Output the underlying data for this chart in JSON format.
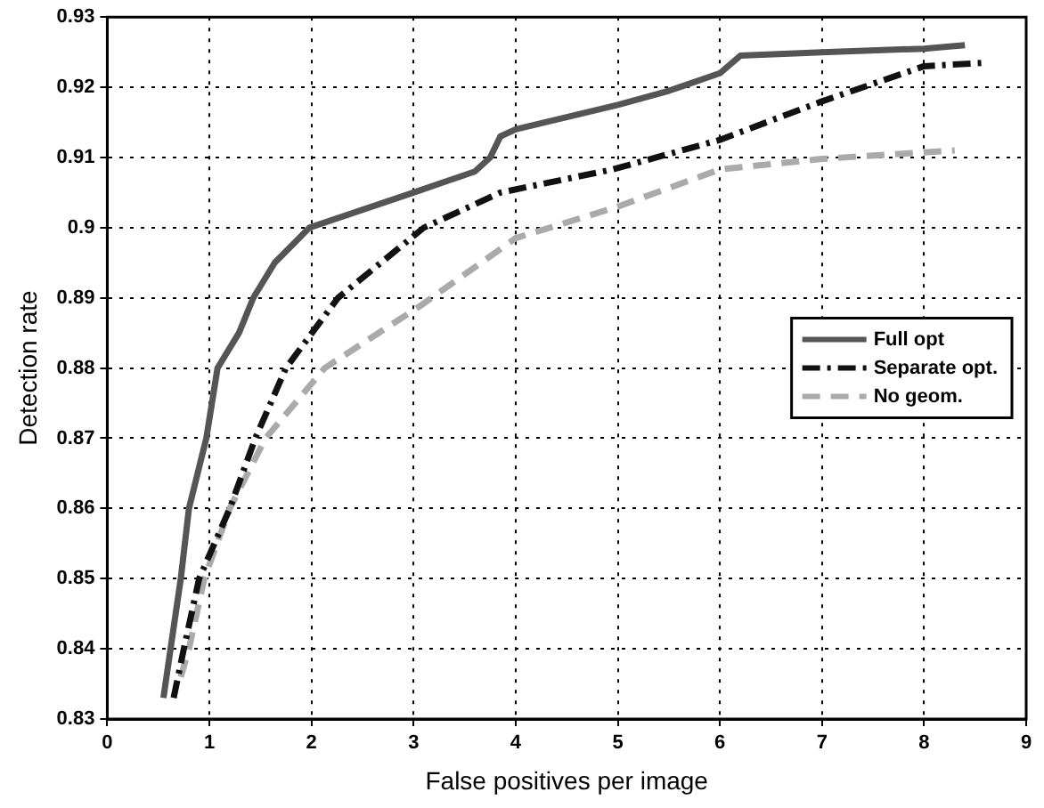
{
  "chart_data": {
    "type": "line",
    "xlabel": "False positives per image",
    "ylabel": "Detection rate",
    "xlim": [
      0,
      9
    ],
    "xticks": [
      0,
      1,
      2,
      3,
      4,
      5,
      6,
      7,
      8,
      9
    ],
    "ylim": [
      0.83,
      0.93
    ],
    "yticks": [
      0.83,
      0.84,
      0.85,
      0.86,
      0.87,
      0.88,
      0.89,
      0.9,
      0.91,
      0.92,
      0.93
    ],
    "grid": true,
    "legend": "right",
    "marker": "none",
    "series": [
      {
        "name": "Full opt",
        "color": "#555555",
        "line_style": "solid",
        "x": [
          0.55,
          0.62,
          0.72,
          0.8,
          0.97,
          1.08,
          1.29,
          1.43,
          1.64,
          1.98,
          3.0,
          3.6,
          3.75,
          3.85,
          4.0,
          5.0,
          5.5,
          6.0,
          6.2,
          7.0,
          8.0,
          8.4
        ],
        "values": [
          0.833,
          0.84,
          0.85,
          0.86,
          0.87,
          0.88,
          0.885,
          0.89,
          0.895,
          0.9,
          0.905,
          0.908,
          0.91,
          0.913,
          0.914,
          0.9175,
          0.9195,
          0.922,
          0.9245,
          0.925,
          0.9255,
          0.926
        ]
      },
      {
        "name": "Separate opt.",
        "color": "#111111",
        "line_style": "dashdot",
        "x": [
          0.65,
          0.75,
          0.9,
          1.2,
          1.45,
          1.75,
          2.26,
          3.1,
          3.85,
          4.95,
          6.0,
          7.0,
          8.0,
          8.6
        ],
        "values": [
          0.833,
          0.84,
          0.85,
          0.86,
          0.87,
          0.88,
          0.89,
          0.9,
          0.905,
          0.9083,
          0.9125,
          0.918,
          0.923,
          0.9235
        ]
      },
      {
        "name": "No geom.",
        "color": "#aaaaaa",
        "line_style": "dashed",
        "x": [
          0.72,
          0.8,
          0.95,
          1.2,
          1.55,
          2.13,
          3.08,
          4.0,
          5.0,
          6.0,
          7.0,
          8.3
        ],
        "values": [
          0.836,
          0.84,
          0.85,
          0.86,
          0.87,
          0.88,
          0.889,
          0.8985,
          0.903,
          0.9083,
          0.9098,
          0.911
        ]
      }
    ]
  }
}
